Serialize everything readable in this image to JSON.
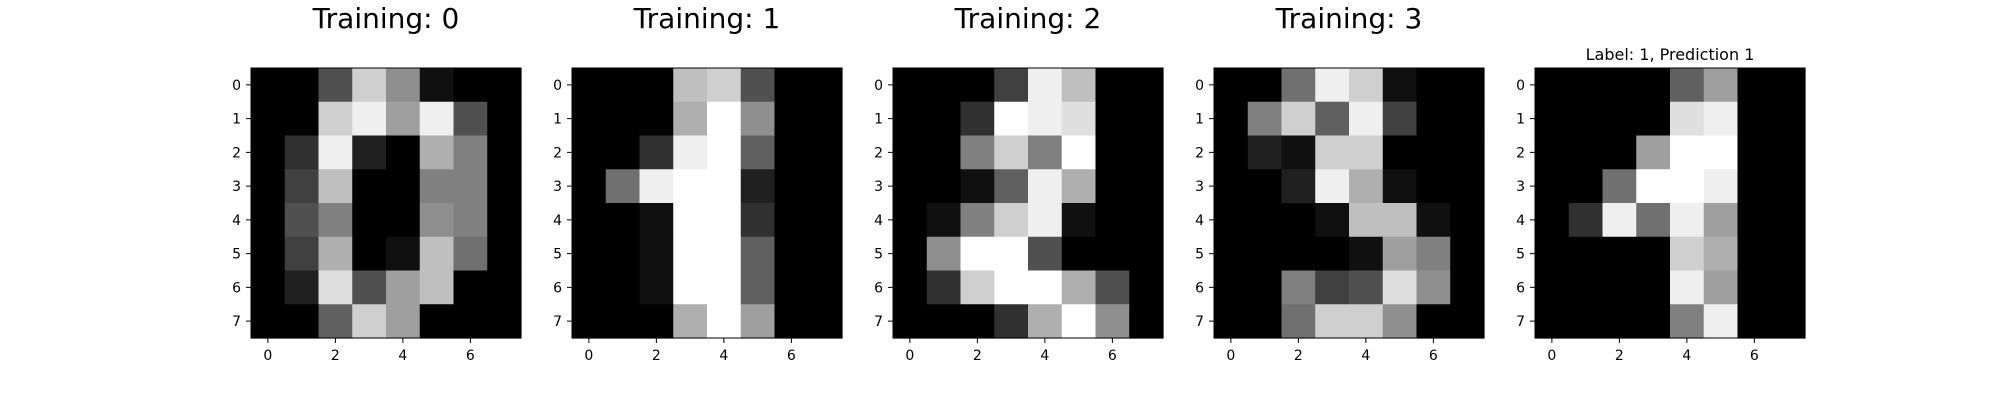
{
  "chart_data": [
    {
      "type": "heatmap",
      "title": "Training: 0",
      "colormap": "gray",
      "xticks": [
        "0",
        "2",
        "4",
        "6"
      ],
      "yticks": [
        "0",
        "1",
        "2",
        "3",
        "4",
        "5",
        "6",
        "7"
      ],
      "values": [
        [
          0,
          0,
          5,
          13,
          9,
          1,
          0,
          0
        ],
        [
          0,
          0,
          13,
          15,
          10,
          15,
          5,
          0
        ],
        [
          0,
          3,
          15,
          2,
          0,
          11,
          8,
          0
        ],
        [
          0,
          4,
          12,
          0,
          0,
          8,
          8,
          0
        ],
        [
          0,
          5,
          8,
          0,
          0,
          9,
          8,
          0
        ],
        [
          0,
          4,
          11,
          0,
          1,
          12,
          7,
          0
        ],
        [
          0,
          2,
          14,
          5,
          10,
          12,
          0,
          0
        ],
        [
          0,
          0,
          6,
          13,
          10,
          0,
          0,
          0
        ]
      ]
    },
    {
      "type": "heatmap",
      "title": "Training: 1",
      "colormap": "gray",
      "xticks": [
        "0",
        "2",
        "4",
        "6"
      ],
      "yticks": [
        "0",
        "1",
        "2",
        "3",
        "4",
        "5",
        "6",
        "7"
      ],
      "values": [
        [
          0,
          0,
          0,
          12,
          13,
          5,
          0,
          0
        ],
        [
          0,
          0,
          0,
          11,
          16,
          9,
          0,
          0
        ],
        [
          0,
          0,
          3,
          15,
          16,
          6,
          0,
          0
        ],
        [
          0,
          7,
          15,
          16,
          16,
          2,
          0,
          0
        ],
        [
          0,
          0,
          1,
          16,
          16,
          3,
          0,
          0
        ],
        [
          0,
          0,
          1,
          16,
          16,
          6,
          0,
          0
        ],
        [
          0,
          0,
          1,
          16,
          16,
          6,
          0,
          0
        ],
        [
          0,
          0,
          0,
          11,
          16,
          10,
          0,
          0
        ]
      ]
    },
    {
      "type": "heatmap",
      "title": "Training: 2",
      "colormap": "gray",
      "xticks": [
        "0",
        "2",
        "4",
        "6"
      ],
      "yticks": [
        "0",
        "1",
        "2",
        "3",
        "4",
        "5",
        "6",
        "7"
      ],
      "values": [
        [
          0,
          0,
          0,
          4,
          15,
          12,
          0,
          0
        ],
        [
          0,
          0,
          3,
          16,
          15,
          14,
          0,
          0
        ],
        [
          0,
          0,
          8,
          13,
          8,
          16,
          0,
          0
        ],
        [
          0,
          0,
          1,
          6,
          15,
          11,
          0,
          0
        ],
        [
          0,
          1,
          8,
          13,
          15,
          1,
          0,
          0
        ],
        [
          0,
          9,
          16,
          16,
          5,
          0,
          0,
          0
        ],
        [
          0,
          3,
          13,
          16,
          16,
          11,
          5,
          0
        ],
        [
          0,
          0,
          0,
          3,
          11,
          16,
          9,
          0
        ]
      ]
    },
    {
      "type": "heatmap",
      "title": "Training: 3",
      "colormap": "gray",
      "xticks": [
        "0",
        "2",
        "4",
        "6"
      ],
      "yticks": [
        "0",
        "1",
        "2",
        "3",
        "4",
        "5",
        "6",
        "7"
      ],
      "values": [
        [
          0,
          0,
          7,
          15,
          13,
          1,
          0,
          0
        ],
        [
          0,
          8,
          13,
          6,
          15,
          4,
          0,
          0
        ],
        [
          0,
          2,
          1,
          13,
          13,
          0,
          0,
          0
        ],
        [
          0,
          0,
          2,
          15,
          11,
          1,
          0,
          0
        ],
        [
          0,
          0,
          0,
          1,
          12,
          12,
          1,
          0
        ],
        [
          0,
          0,
          0,
          0,
          1,
          10,
          8,
          0
        ],
        [
          0,
          0,
          8,
          4,
          5,
          14,
          9,
          0
        ],
        [
          0,
          0,
          7,
          13,
          13,
          9,
          0,
          0
        ]
      ]
    },
    {
      "type": "heatmap",
      "title": "Label: 1, Prediction 1",
      "colormap": "gray",
      "xticks": [
        "0",
        "2",
        "4",
        "6"
      ],
      "yticks": [
        "0",
        "1",
        "2",
        "3",
        "4",
        "5",
        "6",
        "7"
      ],
      "values": [
        [
          0,
          0,
          0,
          0,
          6,
          10,
          0,
          0
        ],
        [
          0,
          0,
          0,
          0,
          14,
          15,
          0,
          0
        ],
        [
          0,
          0,
          0,
          10,
          16,
          16,
          0,
          0
        ],
        [
          0,
          0,
          7,
          16,
          16,
          15,
          0,
          0
        ],
        [
          0,
          3,
          15,
          7,
          15,
          10,
          0,
          0
        ],
        [
          0,
          0,
          0,
          0,
          13,
          11,
          0,
          0
        ],
        [
          0,
          0,
          0,
          0,
          15,
          10,
          0,
          0
        ],
        [
          0,
          0,
          0,
          0,
          8,
          15,
          0,
          0
        ]
      ]
    }
  ]
}
